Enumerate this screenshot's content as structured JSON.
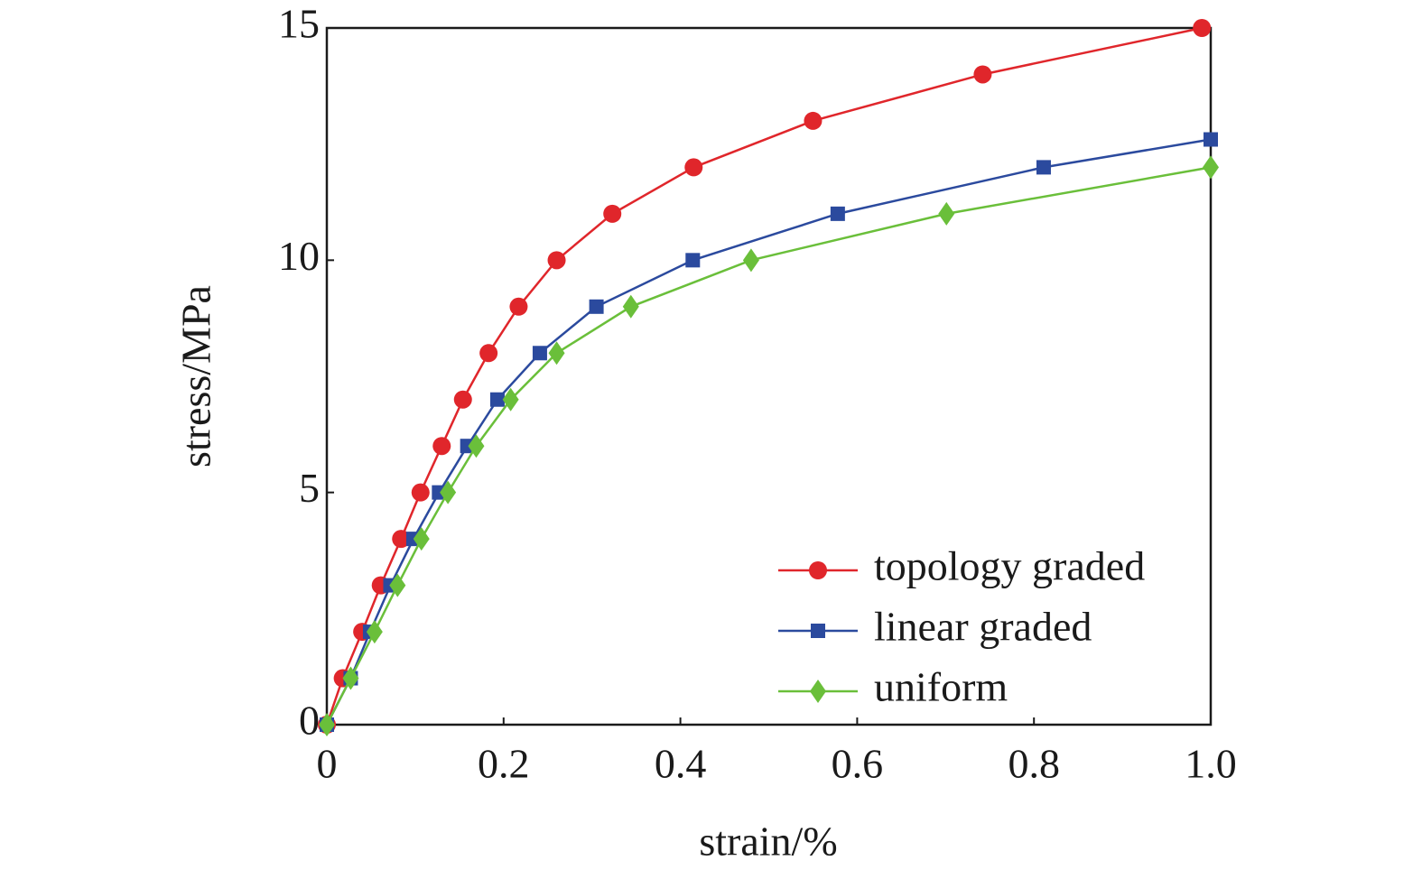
{
  "chart_data": {
    "type": "line",
    "x_label": "strain/%",
    "y_label": "stress/MPa",
    "xlim": [
      0,
      1
    ],
    "ylim": [
      0,
      15
    ],
    "xticks": [
      0,
      0.2,
      0.4,
      0.6,
      0.8,
      {
        "value": 1,
        "label": "1.0"
      }
    ],
    "yticks": [
      0,
      5,
      10,
      15
    ],
    "legend": "lower right",
    "series": [
      {
        "name": "topology graded",
        "color": "#e0262b",
        "marker": "circle",
        "x": [
          0,
          0.018,
          0.04,
          0.061,
          0.084,
          0.106,
          0.13,
          0.154,
          0.183,
          0.217,
          0.26,
          0.323,
          0.415,
          0.55,
          0.742,
          0.99
        ],
        "values": [
          0,
          1,
          2,
          3,
          4,
          5,
          6,
          7,
          8,
          9,
          10,
          11,
          12,
          13,
          14,
          15
        ]
      },
      {
        "name": "linear graded",
        "color": "#2b4a9e",
        "marker": "square",
        "x": [
          0,
          0.027,
          0.049,
          0.072,
          0.098,
          0.127,
          0.159,
          0.193,
          0.241,
          0.305,
          0.414,
          0.578,
          0.811,
          1
        ],
        "values": [
          0,
          1,
          2,
          3,
          4,
          5,
          6,
          7,
          8,
          9,
          10,
          11,
          12,
          12.6
        ]
      },
      {
        "name": "uniform",
        "color": "#6abf3a",
        "marker": "diamond",
        "x": [
          0,
          0.027,
          0.054,
          0.08,
          0.107,
          0.137,
          0.169,
          0.208,
          0.26,
          0.344,
          0.48,
          0.701,
          1
        ],
        "values": [
          0,
          1,
          2,
          3,
          4,
          5,
          6,
          7,
          8,
          9,
          10,
          11,
          12
        ]
      }
    ]
  }
}
